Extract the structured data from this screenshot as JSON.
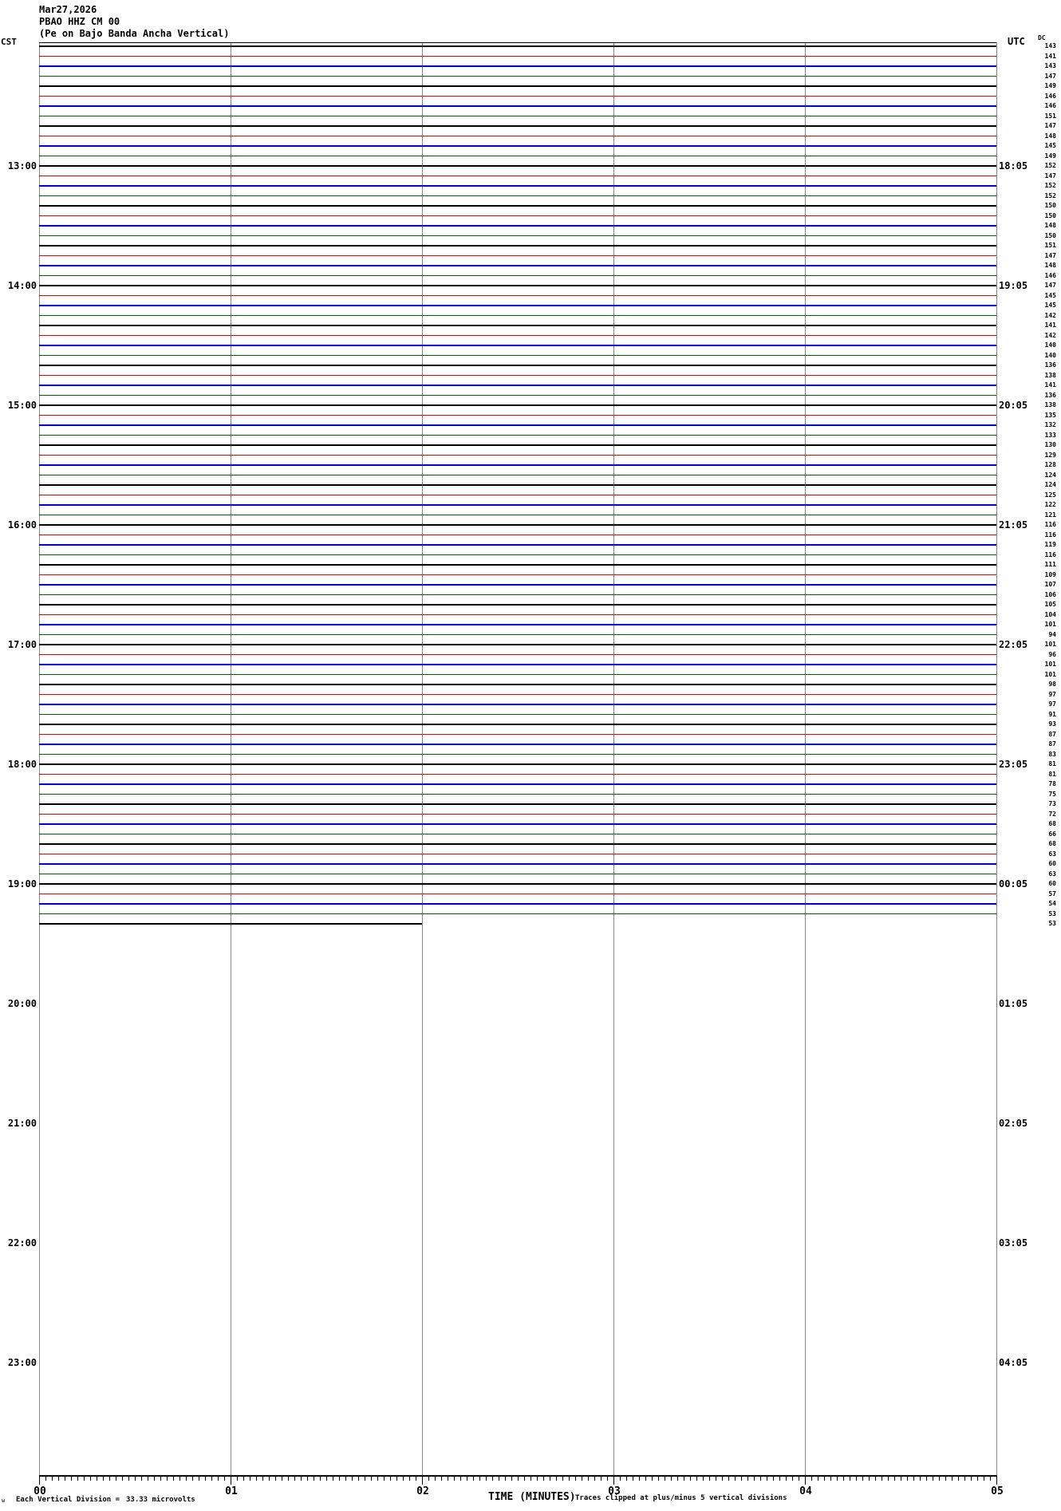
{
  "header": {
    "date": "Mar27,2026",
    "station_line": "PBAO HHZ CM 00",
    "description_line": "(Pe on Bajo Banda Ancha Vertical)",
    "left_tz_header": "CST",
    "right_tz_header": "UTC",
    "dc_column_header": "DC"
  },
  "footer": {
    "corner_glyph": "w",
    "scale_label": "Each Vertical Division =",
    "scale_value": "33.33 microvolts",
    "x_axis_title": "TIME (MINUTES)",
    "clip_note": "Traces clipped at plus/minus 5 vertical divisions"
  },
  "colors": {
    "black": "#000000",
    "red": "#f00000",
    "blue": "#0000e8",
    "green": "#006400",
    "grid": "#878787"
  },
  "chart_data": {
    "type": "line",
    "subtype": "helicorder-seismogram",
    "title": "PBAO HHZ CM 00 (Pe on Bajo Banda Ancha Vertical) Mar27,2026",
    "xlabel": "TIME (MINUTES)",
    "x_ticks": [
      "00",
      "01",
      "02",
      "03",
      "04",
      "05"
    ],
    "x_range_minutes": [
      0,
      5
    ],
    "minutes_per_trace": 5,
    "traces_per_hour": 12,
    "first_trace_local_time_cst": "12:00",
    "trace_color_cycle": [
      "black",
      "red",
      "blue",
      "green"
    ],
    "left_hour_labels_cst": [
      "13:00",
      "14:00",
      "15:00",
      "16:00",
      "17:00",
      "18:00",
      "19:00",
      "20:00",
      "21:00",
      "22:00",
      "23:00"
    ],
    "right_hour_labels_utc": [
      "18:05",
      "19:05",
      "20:05",
      "21:05",
      "22:05",
      "23:05",
      "00:05",
      "01:05",
      "02:05",
      "03:05",
      "04:05"
    ],
    "trace_count": 89,
    "all_traces_flat_no_events": true,
    "last_trace_partial_ends_at_minute": 2,
    "dc_values_per_trace": [
      143,
      141,
      143,
      147,
      149,
      146,
      146,
      151,
      147,
      148,
      145,
      149,
      152,
      147,
      152,
      152,
      150,
      150,
      148,
      150,
      151,
      147,
      148,
      146,
      147,
      145,
      145,
      142,
      141,
      142,
      140,
      140,
      136,
      138,
      141,
      136,
      138,
      135,
      132,
      133,
      130,
      129,
      128,
      124,
      124,
      125,
      122,
      121,
      116,
      116,
      119,
      116,
      111,
      109,
      107,
      106,
      105,
      104,
      101,
      94,
      101,
      96,
      101,
      101,
      98,
      97,
      97,
      91,
      93,
      87,
      87,
      83,
      81,
      81,
      78,
      75,
      73,
      72,
      68,
      66,
      68,
      63,
      60,
      63,
      60,
      57,
      54,
      53,
      53
    ],
    "legend": "none",
    "grid": "vertical minute gridlines at 01,02,03,04; gray plot side borders"
  }
}
